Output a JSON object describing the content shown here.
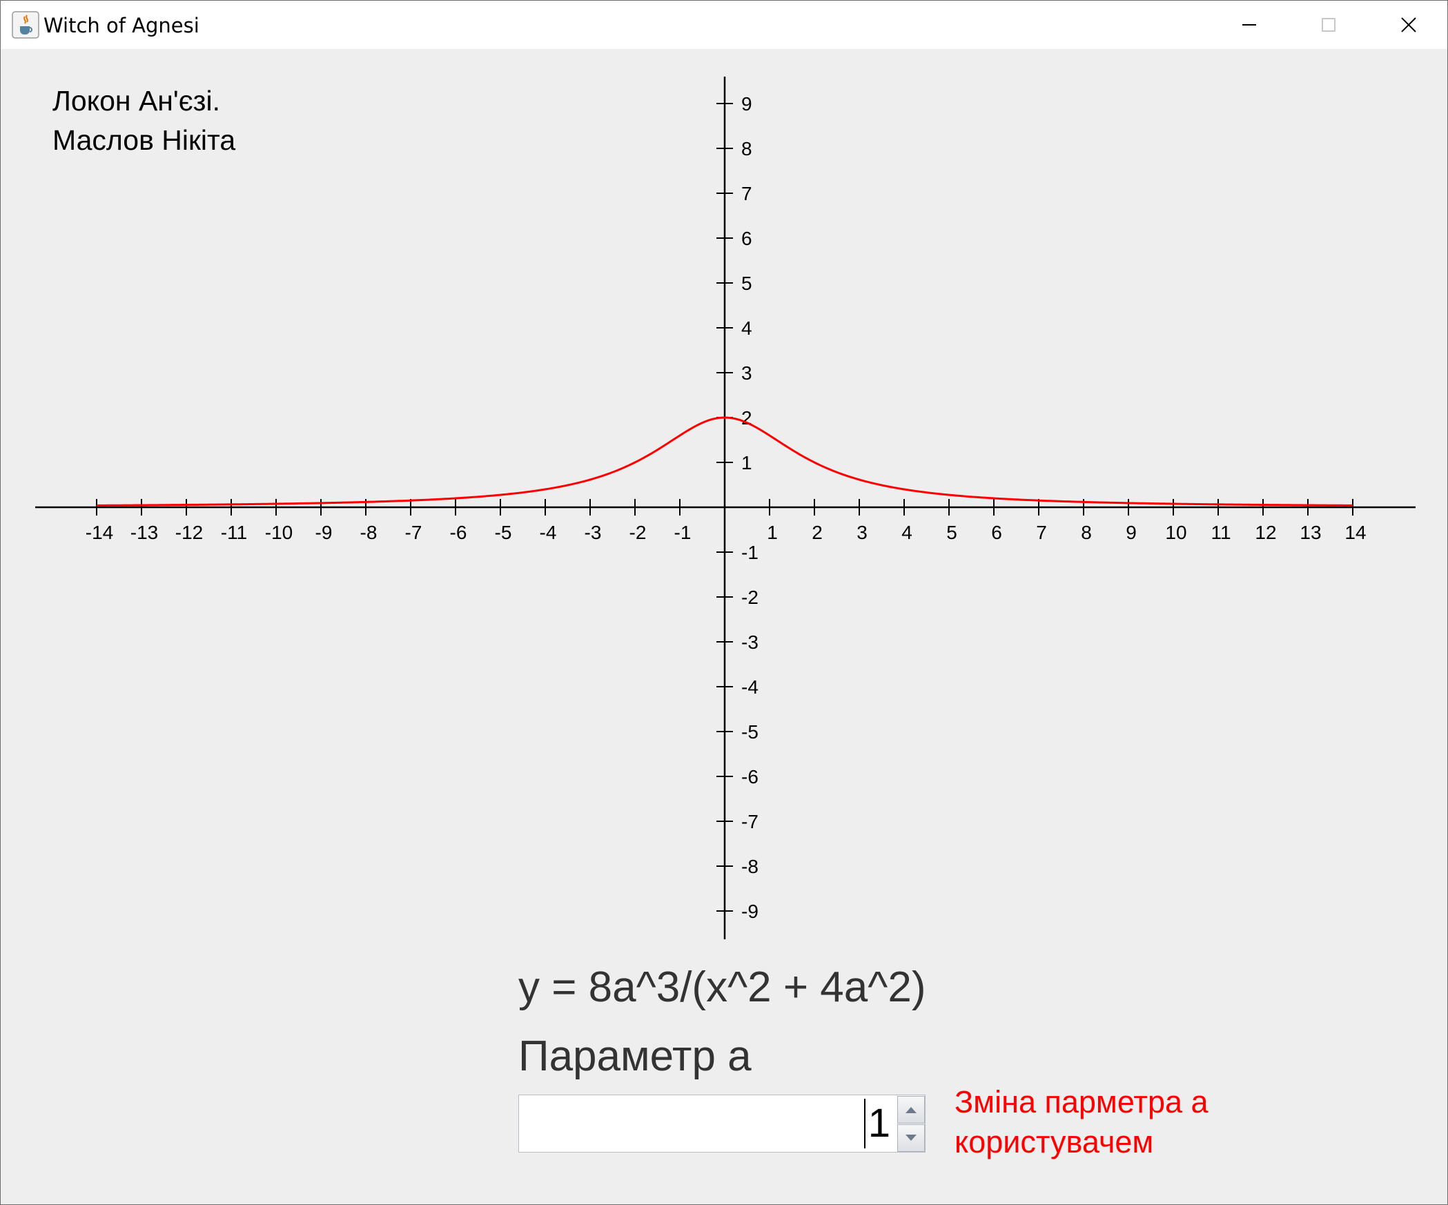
{
  "window": {
    "title": "Witch of Agnesi",
    "icon": "java-cup-icon",
    "controls": [
      "minimize-icon",
      "maximize-icon",
      "close-icon"
    ]
  },
  "author": {
    "line1": "Локон Ан'єзі.",
    "line2": "Маслов Нікіта"
  },
  "formula": "y = 8a^3/(x^2 + 4a^2)",
  "parameter": {
    "label": "Параметр a",
    "value": "1",
    "hint_line1": "Зміна парметра a",
    "hint_line2": "користувачем"
  },
  "colors": {
    "curve": "#ff0000",
    "hint": "#ff0000",
    "axis": "#000000",
    "background": "#eeeeee"
  },
  "chart_data": {
    "type": "line",
    "function": "y = 8a^3/(x^2 + 4a^2)",
    "a": 1,
    "xlim": [
      -14,
      14
    ],
    "ylim": [
      -9,
      9
    ],
    "x_ticks": [
      "-14",
      "-13",
      "-12",
      "-11",
      "-10",
      "-9",
      "-8",
      "-7",
      "-6",
      "-5",
      "-4",
      "-3",
      "-2",
      "-1",
      "1",
      "2",
      "3",
      "4",
      "5",
      "6",
      "7",
      "8",
      "9",
      "10",
      "11",
      "12",
      "13",
      "14"
    ],
    "y_ticks": [
      "9",
      "8",
      "7",
      "6",
      "5",
      "4",
      "3",
      "2",
      "1",
      "-1",
      "-2",
      "-3",
      "-4",
      "-5",
      "-6",
      "-7",
      "-8",
      "-9"
    ],
    "grid": false,
    "series": [
      {
        "color": "#ff0000"
      }
    ]
  }
}
